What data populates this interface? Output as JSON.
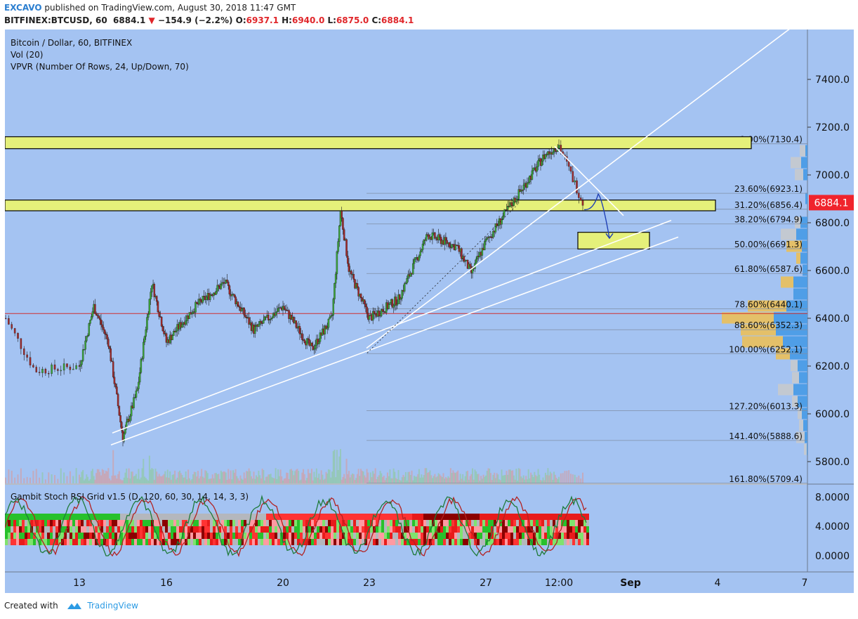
{
  "header": {
    "author": "EXCAVO",
    "published": "published on TradingView.com, August 30, 2018 11:47 GMT",
    "symbol": "BITFINEX:BTCUSD, 60",
    "last": "6884.1",
    "change": "−154.9 (−2.2%)",
    "o_label": "O:",
    "o": "6937.1",
    "h_label": "H:",
    "h": "6940.0",
    "l_label": "L:",
    "l": "6875.0",
    "c_label": "C:",
    "c": "6884.1"
  },
  "legend": {
    "line1": "Bitcoin / Dollar, 60, BITFINEX",
    "line2": "Vol (20)",
    "line3": "VPVR (Number Of Rows, 24, Up/Down, 70)"
  },
  "indicator": {
    "name": "Gambit Stoch RSI Grid v1.5 (D, 120, 60, 30, 14, 14, 3, 3)",
    "ticks": [
      "8.0000",
      "4.0000",
      "0.0000"
    ]
  },
  "price_axis": {
    "ticks": [
      "7400.0",
      "7200.0",
      "7000.0",
      "6800.0",
      "6600.0",
      "6400.0",
      "6200.0",
      "6000.0",
      "5800.0"
    ],
    "current_price": "6884.1"
  },
  "time_axis": {
    "ticks": [
      "13",
      "16",
      "20",
      "23",
      "27",
      "12:00",
      "Sep",
      "4",
      "7"
    ]
  },
  "fibonacci": [
    {
      "label": "0.00%(7130.4)",
      "price": 7130.4
    },
    {
      "label": "23.60%(6923.1)",
      "price": 6923.1
    },
    {
      "label": "31.20%(6856.4)",
      "price": 6856.4
    },
    {
      "label": "38.20%(6794.9)",
      "price": 6794.9
    },
    {
      "label": "50.00%(6691.3)",
      "price": 6691.3
    },
    {
      "label": "61.80%(6587.6)",
      "price": 6587.6
    },
    {
      "label": "78.60%(6440.1)",
      "price": 6440.1
    },
    {
      "label": "88.60%(6352.3)",
      "price": 6352.3
    },
    {
      "label": "100.00%(6252.1)",
      "price": 6252.1
    },
    {
      "label": "127.20%(6013.3)",
      "price": 6013.3
    },
    {
      "label": "141.40%(5888.6)",
      "price": 5888.6
    },
    {
      "label": "161.80%(5709.4)",
      "price": 5709.4
    }
  ],
  "colors": {
    "background": "#a4c3f2",
    "up": "#3aa53a",
    "down": "#a0292a",
    "zone": "#e5f07a",
    "vp_up": "#4b9ce6",
    "vp_down": "#e8c061",
    "vp_neutral": "#c5c9cf",
    "price_tag": "#f0242c"
  },
  "chart_data": {
    "type": "candlestick",
    "title": "Bitcoin / Dollar, 60, BITFINEX",
    "ylim": [
      5750,
      7550
    ],
    "y_ticks": [
      7400,
      7200,
      7000,
      6800,
      6600,
      6400,
      6200,
      6000,
      5800
    ],
    "x_ticks": [
      "13",
      "16",
      "20",
      "23",
      "27",
      "12:00",
      "Sep",
      "4",
      "7"
    ],
    "price_path": [
      {
        "t": "Aug 12",
        "price": 6400
      },
      {
        "t": "Aug 12.4",
        "price": 6180
      },
      {
        "t": "Aug 13",
        "price": 6200
      },
      {
        "t": "Aug 13.5",
        "price": 6450
      },
      {
        "t": "Aug 14",
        "price": 6300
      },
      {
        "t": "Aug 14.5",
        "price": 5900
      },
      {
        "t": "Aug 15",
        "price": 6100
      },
      {
        "t": "Aug 15.5",
        "price": 6550
      },
      {
        "t": "Aug 16",
        "price": 6300
      },
      {
        "t": "Aug 17",
        "price": 6450
      },
      {
        "t": "Aug 18",
        "price": 6550
      },
      {
        "t": "Aug 19",
        "price": 6350
      },
      {
        "t": "Aug 20",
        "price": 6450
      },
      {
        "t": "Aug 21",
        "price": 6270
      },
      {
        "t": "Aug 21.7",
        "price": 6400
      },
      {
        "t": "Aug 22",
        "price": 6850
      },
      {
        "t": "Aug 22.3",
        "price": 6600
      },
      {
        "t": "Aug 23",
        "price": 6400
      },
      {
        "t": "Aug 24",
        "price": 6480
      },
      {
        "t": "Aug 25",
        "price": 6750
      },
      {
        "t": "Aug 26",
        "price": 6700
      },
      {
        "t": "Aug 26.5",
        "price": 6590
      },
      {
        "t": "Aug 27",
        "price": 6720
      },
      {
        "t": "Aug 28",
        "price": 6900
      },
      {
        "t": "Aug 29",
        "price": 7080
      },
      {
        "t": "Aug 29.5",
        "price": 7125
      },
      {
        "t": "Aug 30",
        "price": 6884
      }
    ],
    "last_price": 6884.1,
    "horizontal_line": 6420,
    "resistance_zones": [
      {
        "from": 7110,
        "to": 7160
      },
      {
        "from": 6850,
        "to": 6895
      }
    ],
    "target_zone": {
      "from": 6690,
      "to": 6760
    },
    "volume_profile": [
      {
        "price": 7100,
        "up": 3,
        "down": 0,
        "neutral": 8
      },
      {
        "price": 7050,
        "up": 9,
        "down": 0,
        "neutral": 15
      },
      {
        "price": 7000,
        "up": 6,
        "down": 0,
        "neutral": 12
      },
      {
        "price": 6900,
        "up": 3,
        "down": 0,
        "neutral": 0
      },
      {
        "price": 6800,
        "up": 10,
        "down": 0,
        "neutral": 8
      },
      {
        "price": 6750,
        "up": 16,
        "down": 0,
        "neutral": 22
      },
      {
        "price": 6700,
        "up": 8,
        "down": 22,
        "neutral": 0
      },
      {
        "price": 6650,
        "up": 10,
        "down": 6,
        "neutral": 0
      },
      {
        "price": 6600,
        "up": 7,
        "down": 0,
        "neutral": 0
      },
      {
        "price": 6550,
        "up": 20,
        "down": 18,
        "neutral": 0
      },
      {
        "price": 6500,
        "up": 20,
        "down": 0,
        "neutral": 0
      },
      {
        "price": 6450,
        "up": 30,
        "down": 55,
        "neutral": 0
      },
      {
        "price": 6400,
        "up": 48,
        "down": 74,
        "neutral": 0
      },
      {
        "price": 6350,
        "up": 45,
        "down": 50,
        "neutral": 0
      },
      {
        "price": 6300,
        "up": 35,
        "down": 58,
        "neutral": 0
      },
      {
        "price": 6250,
        "up": 25,
        "down": 20,
        "neutral": 0
      },
      {
        "price": 6200,
        "up": 14,
        "down": 0,
        "neutral": 10
      },
      {
        "price": 6150,
        "up": 12,
        "down": 0,
        "neutral": 10
      },
      {
        "price": 6100,
        "up": 20,
        "down": 0,
        "neutral": 22
      },
      {
        "price": 6050,
        "up": 14,
        "down": 0,
        "neutral": 8
      },
      {
        "price": 6000,
        "up": 8,
        "down": 0,
        "neutral": 6
      },
      {
        "price": 5950,
        "up": 6,
        "down": 0,
        "neutral": 6
      },
      {
        "price": 5900,
        "up": 4,
        "down": 0,
        "neutral": 12
      },
      {
        "price": 5850,
        "up": 1,
        "down": 0,
        "neutral": 4
      }
    ]
  },
  "footer": {
    "created": "Created with",
    "brand": "TradingView"
  }
}
